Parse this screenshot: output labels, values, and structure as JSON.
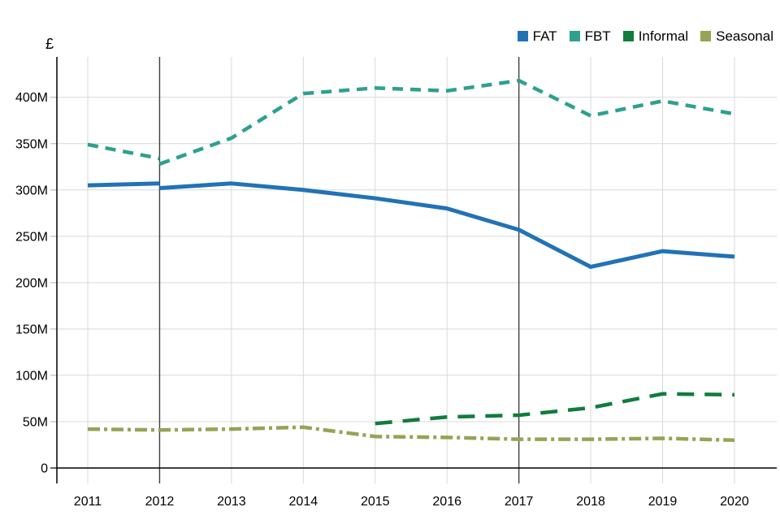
{
  "chart_data": {
    "type": "line",
    "title": "",
    "xlabel": "",
    "ylabel": "£",
    "x": [
      2011,
      2012,
      2013,
      2014,
      2015,
      2016,
      2017,
      2018,
      2019,
      2020
    ],
    "ylim": [
      0,
      430
    ],
    "yticks": [
      0,
      50,
      100,
      150,
      200,
      250,
      300,
      350,
      400
    ],
    "ytick_labels": [
      "0",
      "50M",
      "100M",
      "150M",
      "200M",
      "250M",
      "300M",
      "350M",
      "400M"
    ],
    "grid": true,
    "legend_position": "top-right",
    "break_years": [
      2012,
      2017
    ],
    "colors": {
      "grid": "#d9d9d9",
      "break_line": "#3f3f3f",
      "axis": "#000000",
      "text": "#000000",
      "background": "#ffffff"
    },
    "series": [
      {
        "name": "FAT",
        "color": "#2272b5",
        "style": "solid",
        "width": 5,
        "segments": [
          {
            "x": [
              2011,
              2012
            ],
            "y": [
              305,
              307
            ]
          },
          {
            "x": [
              2012,
              2013,
              2014,
              2015,
              2016,
              2017,
              2018,
              2019,
              2020
            ],
            "y": [
              302,
              307,
              300,
              291,
              280,
              257,
              217,
              234,
              228
            ]
          }
        ]
      },
      {
        "name": "FBT",
        "color": "#2ea08e",
        "style": "dashed",
        "width": 4.5,
        "segments": [
          {
            "x": [
              2011,
              2012
            ],
            "y": [
              349,
              334
            ]
          },
          {
            "x": [
              2012,
              2013,
              2014,
              2015,
              2016,
              2017,
              2018,
              2019,
              2020
            ],
            "y": [
              328,
              356,
              404,
              410,
              407,
              418,
              380,
              396,
              382
            ]
          }
        ]
      },
      {
        "name": "Informal",
        "color": "#107c3d",
        "style": "longdash",
        "width": 4.5,
        "segments": [
          {
            "x": [
              2015,
              2016,
              2017,
              2018,
              2019,
              2020
            ],
            "y": [
              48,
              55,
              57,
              65,
              80,
              79
            ]
          }
        ]
      },
      {
        "name": "Seasonal",
        "color": "#97a355",
        "style": "dashdot",
        "width": 4.5,
        "segments": [
          {
            "x": [
              2011,
              2012,
              2013,
              2014,
              2015,
              2016,
              2017,
              2018,
              2019,
              2020
            ],
            "y": [
              42,
              41,
              42,
              44,
              34,
              33,
              31,
              31,
              32,
              30
            ]
          }
        ]
      }
    ]
  }
}
